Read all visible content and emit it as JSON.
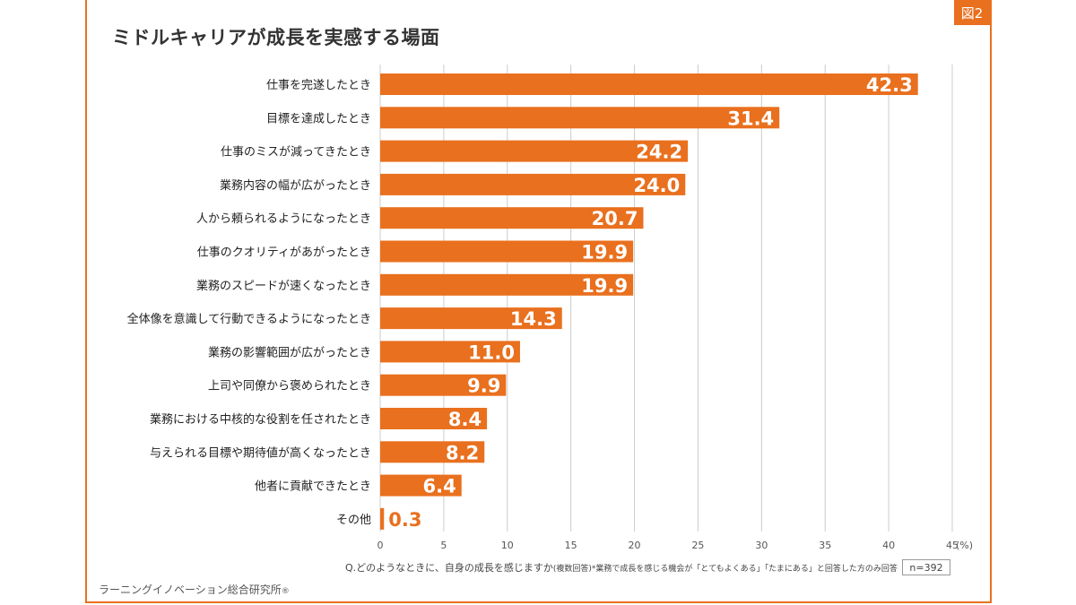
{
  "figure_badge": "図2",
  "note": {
    "question": "Q.どのようなときに、自身の成長を感じますか",
    "paren": "(複数回答)",
    "condition": "*業務で成長を感じる機会が「とてもよくある」「たまにある」と回答した方のみ回答"
  },
  "sample_size": "n=392",
  "source": "ラーニングイノベーション総合研究所",
  "source_mark": "®",
  "colors": {
    "bar": "#e9701e",
    "grid": "#cccccc",
    "frame": "#e9701e"
  },
  "chart_data": {
    "type": "bar",
    "orientation": "horizontal",
    "title": "ミドルキャリアが成長を実感する場面",
    "categories": [
      "仕事を完遂したとき",
      "目標を達成したとき",
      "仕事のミスが減ってきたとき",
      "業務内容の幅が広がったとき",
      "人から頼られるようになったとき",
      "仕事のクオリティがあがったとき",
      "業務のスピードが速くなったとき",
      "全体像を意識して行動できるようになったとき",
      "業務の影響範囲が広がったとき",
      "上司や同僚から褒められたとき",
      "業務における中核的な役割を任されたとき",
      "与えられる目標や期待値が高くなったとき",
      "他者に貢献できたとき",
      "その他"
    ],
    "values": [
      42.3,
      31.4,
      24.2,
      24.0,
      20.7,
      19.9,
      19.9,
      14.3,
      11.0,
      9.9,
      8.4,
      8.2,
      6.4,
      0.3
    ],
    "value_labels": [
      "42.3",
      "31.4",
      "24.2",
      "24.0",
      "20.7",
      "19.9",
      "19.9",
      "14.3",
      "11.0",
      "9.9",
      "8.4",
      "8.2",
      "6.4",
      "0.3"
    ],
    "xlim": [
      0,
      45
    ],
    "xticks": [
      0,
      5,
      10,
      15,
      20,
      25,
      30,
      35,
      40,
      45
    ],
    "xtick_labels": [
      "0",
      "5",
      "10",
      "15",
      "20",
      "25",
      "30",
      "35",
      "40",
      "45"
    ],
    "x_unit": "(%)",
    "grid": true
  }
}
